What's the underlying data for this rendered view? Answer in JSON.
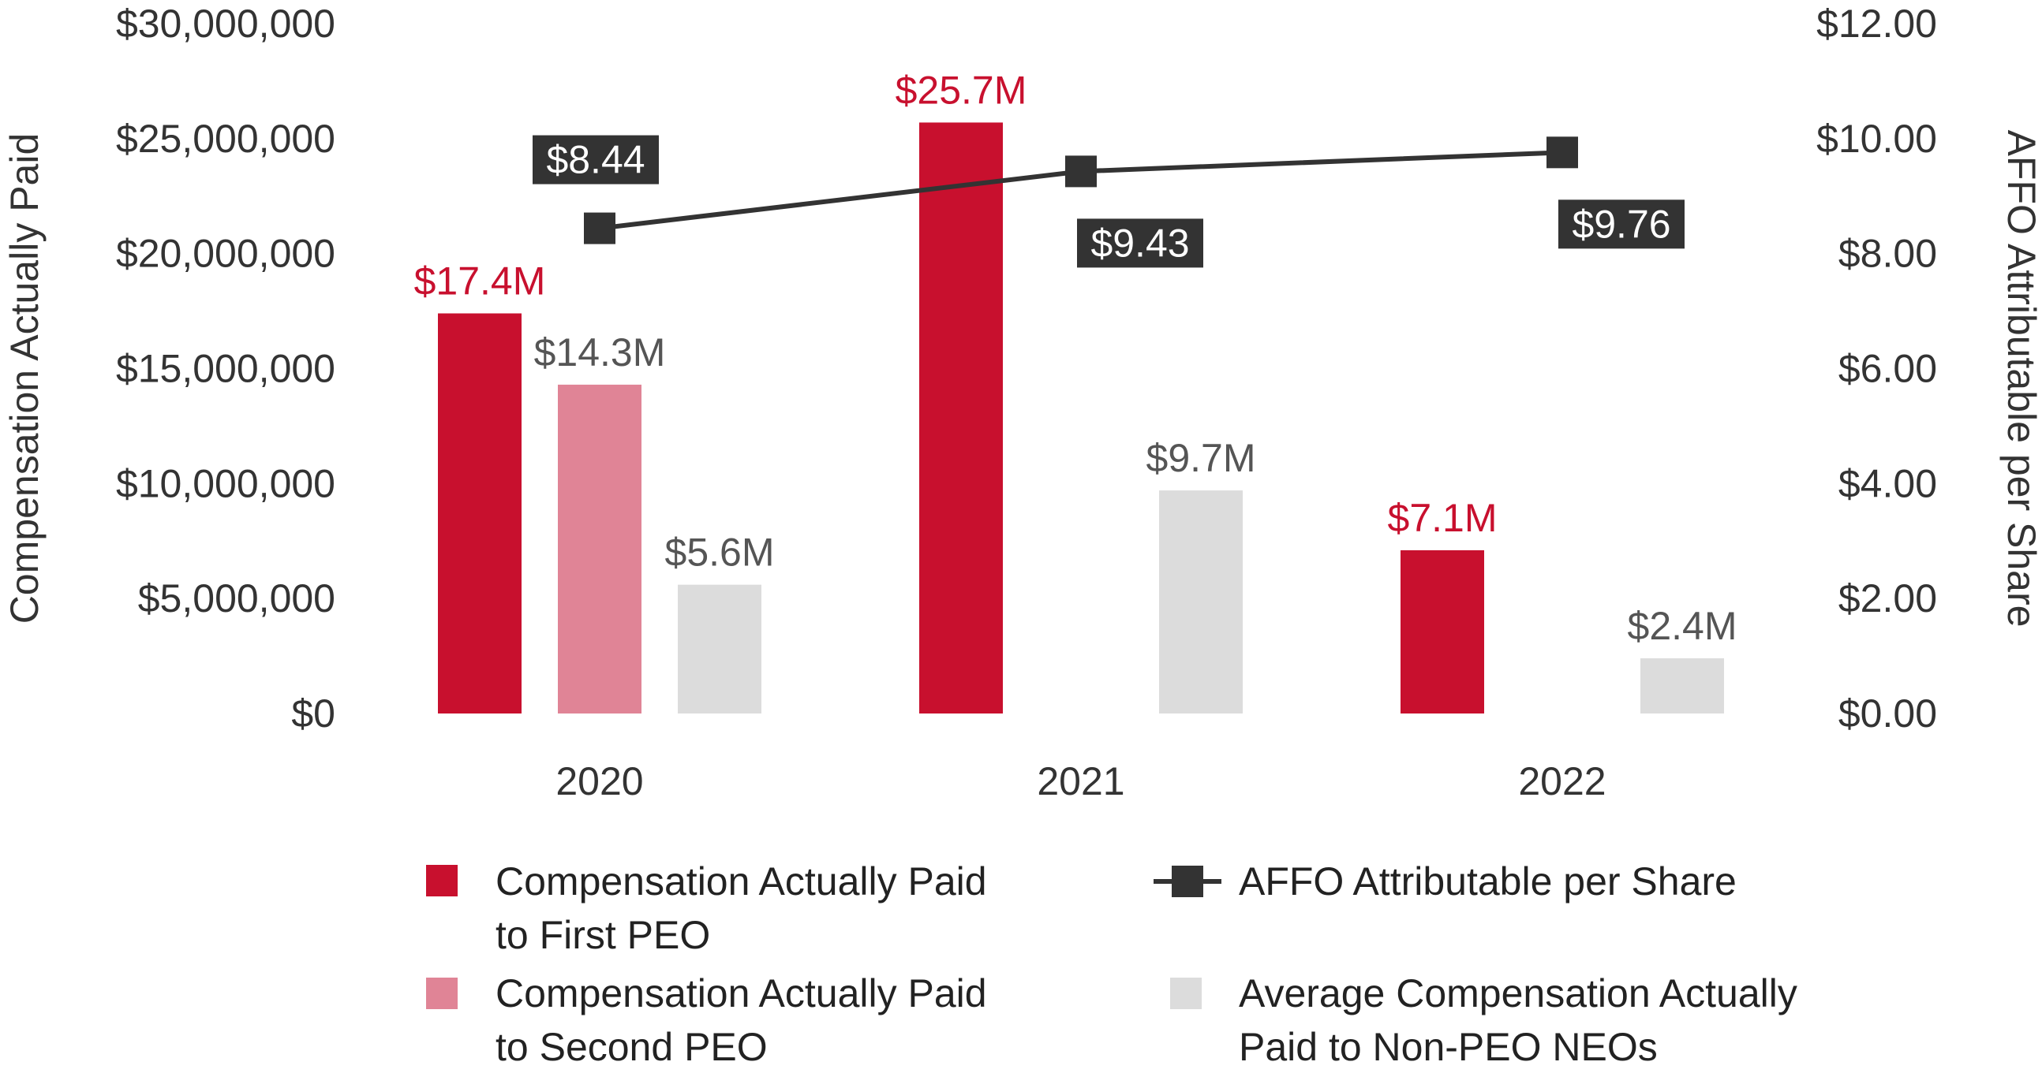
{
  "chart_data": {
    "type": "bar",
    "categories": [
      "2020",
      "2021",
      "2022"
    ],
    "y_left": {
      "label": "Compensation Actually Paid",
      "range": [
        0,
        30000000
      ],
      "ticks": [
        "$0",
        "$5,000,000",
        "$10,000,000",
        "$15,000,000",
        "$20,000,000",
        "$25,000,000",
        "$30,000,000"
      ]
    },
    "y_right": {
      "label": "AFFO Attributable per Share",
      "range": [
        0,
        12
      ],
      "ticks": [
        "$0.00",
        "$2.00",
        "$4.00",
        "$6.00",
        "$8.00",
        "$10.00",
        "$12.00"
      ]
    },
    "series": [
      {
        "name": "Compensation Actually Paid to First PEO",
        "legend_lines": [
          "Compensation Actually Paid",
          "to First PEO"
        ],
        "type": "bar",
        "axis": "left",
        "color": "#C8102E",
        "label_color": "#C8102E",
        "values": [
          17400000,
          25700000,
          7100000
        ],
        "labels": [
          "$17.4M",
          "$25.7M",
          "$7.1M"
        ]
      },
      {
        "name": "Compensation Actually Paid to Second PEO",
        "legend_lines": [
          "Compensation Actually Paid",
          "to Second PEO"
        ],
        "type": "bar",
        "axis": "left",
        "color": "#E08496",
        "label_color": "#555555",
        "values": [
          14300000,
          null,
          null
        ],
        "labels": [
          "$14.3M",
          null,
          null
        ]
      },
      {
        "name": "Average Compensation Actually Paid to Non-PEO NEOs",
        "legend_lines": [
          "Average Compensation Actually",
          "Paid to Non-PEO NEOs"
        ],
        "type": "bar",
        "axis": "left",
        "color": "#DCDCDC",
        "label_color": "#555555",
        "values": [
          5600000,
          9700000,
          2400000
        ],
        "labels": [
          "$5.6M",
          "$9.7M",
          "$2.4M"
        ]
      },
      {
        "name": "AFFO Attributable per Share",
        "legend_lines": [
          "AFFO Attributable per Share"
        ],
        "type": "line",
        "axis": "right",
        "color": "#333333",
        "values": [
          8.44,
          9.43,
          9.76
        ],
        "labels": [
          "$8.44",
          "$9.43",
          "$9.76"
        ],
        "label_positions": [
          "above",
          "below",
          "below"
        ]
      }
    ],
    "legend_position": "bottom"
  }
}
